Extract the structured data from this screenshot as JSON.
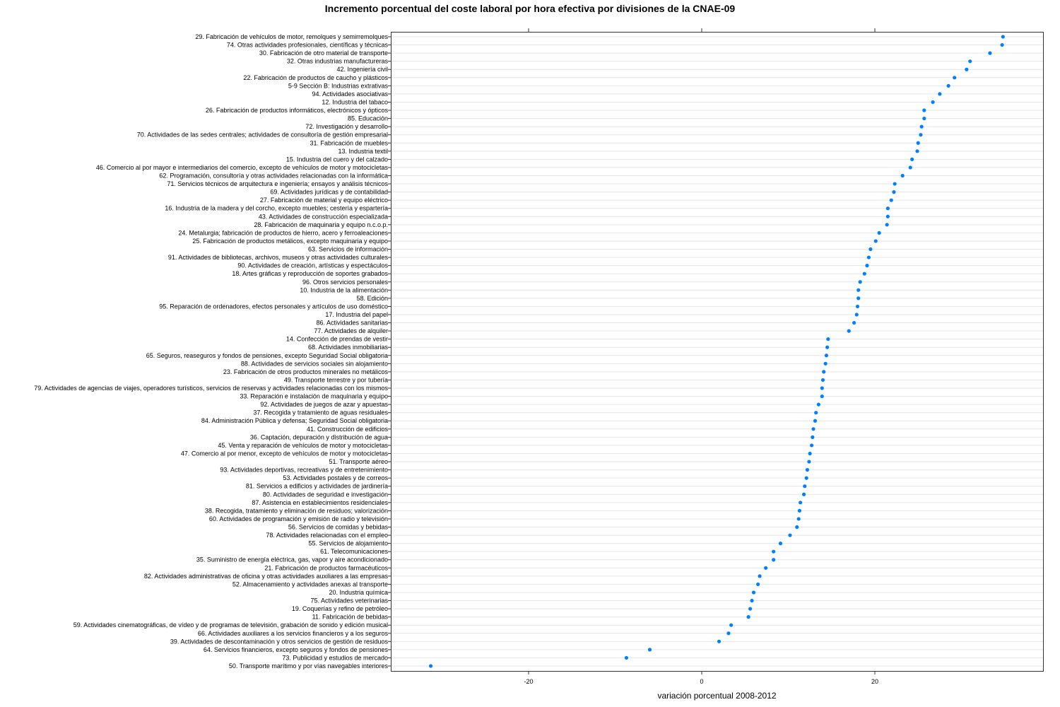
{
  "chart_data": {
    "type": "scatter",
    "subtype": "dotplot",
    "title": "Incremento porcentual del coste laboral por hora efectiva por divisiones de la CNAE-09",
    "xlabel": "variación porcentual 2008-2012",
    "ylabel": "",
    "xlim": [
      -35,
      40
    ],
    "xticks": [
      -20,
      0,
      20
    ],
    "xtick_labels": [
      "-20",
      "0",
      "20"
    ],
    "grid": "horizontal",
    "point_color": "#0080ff",
    "categories": [
      "29. Fabricación de vehículos de motor, remolques y semirremolques",
      "74. Otras actividades profesionales, científicas y técnicas",
      "30. Fabricación de otro material de transporte",
      "32. Otras industrias manufactureras",
      "42. Ingeniería civil",
      "22. Fabricación de productos de caucho y plásticos",
      "5-9 Sección B: Industrias extrativas",
      "94. Actividades asociativas",
      "12. Industria del tabaco",
      "26. Fabricación de productos informáticos, electrónicos y ópticos",
      "85. Educación",
      "72. Investigación y desarrollo",
      "70. Actividades de las sedes centrales; actividades de consultoría de gestión empresarial",
      "31. Fabricación de muebles",
      "13. Industria textil",
      "15. Industria del cuero y del calzado",
      "46. Comercio al por mayor e intermediarios del comercio, excepto de vehículos de motor y motocicletas",
      "62. Programación, consultoría y otras actividades relacionadas con la informática",
      "71. Servicios técnicos de arquitectura e ingeniería; ensayos y análisis técnicos",
      "69. Actividades jurídicas y de contabilidad",
      "27. Fabricación de material y equipo eléctrico",
      "16. Industria de la madera y del corcho, excepto muebles; cestería y espartería",
      "43. Actividades de construcción especializada",
      "28. Fabricación de maquinaria y equipo n.c.o.p.",
      "24. Metalurgia; fabricación de productos de hierro, acero y ferroaleaciones",
      "25. Fabricación de productos metálicos, excepto maquinaria y equipo",
      "63. Servicios de información",
      "91. Actividades de bibliotecas, archivos, museos y otras actividades culturales",
      "90. Actividades de creación, artísticas y espectáculos",
      "18. Artes gráficas y reproducción de soportes grabados",
      "96. Otros servicios personales",
      "10. Industria de la alimentación",
      "58. Edición",
      "95. Reparación de ordenadores, efectos personales y artículos de uso doméstico",
      "17. Industria del papel",
      "86. Actividades sanitarias",
      "77. Actividades de alquiler",
      "14. Confección de prendas de vestir",
      "68. Actividades inmobiliarias",
      "65. Seguros, reaseguros y fondos de pensiones, excepto Seguridad Social obligatoria",
      "88. Actividades de servicios sociales sin alojamiento",
      "23. Fabricación de otros productos minerales no metálicos",
      "49. Transporte terrestre y por tubería",
      "79. Actividades de agencias de viajes, operadores turísticos, servicios de reservas y actividades relacionadas con los mismos",
      "33. Reparación e instalación de maquinaria y equipo",
      "92. Actividades de juegos de azar y apuestas",
      "37. Recogida y tratamiento de aguas residuales",
      "84. Administración Pública y defensa; Seguridad Social obligatoria",
      "41. Construcción de edificios",
      "36. Captación, depuración y distribución de agua",
      "45. Venta y reparación de vehículos de motor y motocicletas",
      "47. Comercio al por menor, excepto de vehículos de motor y motocicletas",
      "51. Transporte aéreo",
      "93. Actividades deportivas, recreativas y de entretenimiento",
      "53. Actividades postales y de correos",
      "81. Servicios a edificios y actividades de jardinería",
      "80. Actividades de seguridad e investigación",
      "87. Asistencia en establecimientos residenciales",
      "38. Recogida, tratamiento y eliminación de residuos; valorización",
      "60. Actividades de programación y emisión de radio y televisión",
      "56. Servicios de comidas y bebidas",
      "78. Actividades relacionadas con el empleo",
      "55. Servicios de alojamiento",
      "61. Telecomunicaciones",
      "35. Suministro de energía eléctrica, gas, vapor y aire acondicionado",
      "21. Fabricación de productos farmacéuticos",
      "82. Actividades administrativas de oficina y otras actividades auxiliares a las empresas",
      "52. Almacenamiento y actividades anexas al transporte",
      "20. Industria química",
      "75. Actividades veterinarias",
      "19. Coquerías y refino de petróleo",
      "11. Fabricación de bebidas",
      "59. Actividades cinematográficas, de vídeo y de programas de televisión, grabación de sonido y edición musical",
      "66. Actividades auxiliares a los servicios financieros y a los seguros",
      "39. Actividades de descontaminación y otros servicios de gestión de residuos",
      "64. Servicios financieros, excepto seguros y fondos de pensiones",
      "73. Publicidad y estudios de mercado",
      "50. Transporte marítimo y por vías navegables interiores"
    ],
    "values": [
      34.8,
      34.7,
      33.3,
      31.0,
      30.6,
      29.2,
      28.5,
      27.5,
      26.7,
      25.7,
      25.7,
      25.4,
      25.3,
      25.0,
      24.9,
      24.3,
      24.1,
      23.2,
      22.3,
      22.2,
      21.9,
      21.5,
      21.5,
      21.4,
      20.5,
      20.1,
      19.5,
      19.3,
      19.1,
      18.8,
      18.3,
      18.1,
      18.1,
      18.0,
      17.9,
      17.6,
      17.0,
      14.6,
      14.5,
      14.4,
      14.3,
      14.1,
      14.0,
      13.9,
      13.9,
      13.5,
      13.2,
      13.1,
      12.9,
      12.8,
      12.7,
      12.5,
      12.4,
      12.2,
      12.1,
      11.9,
      11.8,
      11.4,
      11.3,
      11.2,
      11.0,
      10.2,
      9.1,
      8.3,
      8.3,
      7.4,
      6.7,
      6.5,
      6.0,
      5.8,
      5.6,
      5.4,
      3.4,
      3.1,
      2.0,
      -6.0,
      -8.7,
      -31.3
    ]
  }
}
